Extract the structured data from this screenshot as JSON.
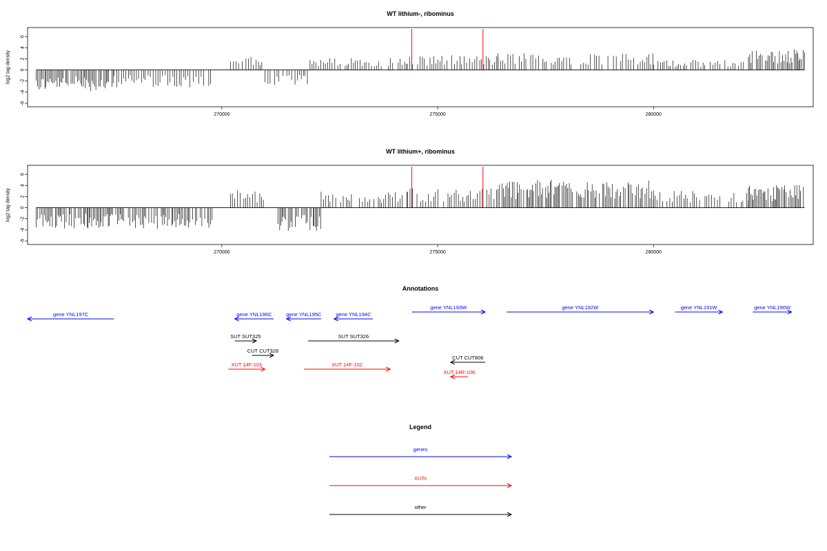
{
  "chart_data": [
    {
      "type": "bar",
      "title": "WT lithium-, ribominus",
      "ylabel": "log2 tag density",
      "xlabel": "",
      "xlim": [
        265500,
        283700
      ],
      "ylim": [
        -6,
        7
      ],
      "x_ticks": [
        "270000",
        "275000",
        "280000"
      ],
      "y_ticks": [
        "-6",
        "-4",
        "-2",
        "0",
        "2",
        "4",
        "6"
      ],
      "marker_positions": [
        274400,
        276050
      ],
      "values_note": "dense per-position signal; bars generated from regional approximate levels",
      "regions": [
        {
          "from": 265700,
          "to": 267500,
          "level": -3.2
        },
        {
          "from": 267500,
          "to": 268800,
          "level": -2.6
        },
        {
          "from": 268800,
          "to": 269800,
          "level": -2.8
        },
        {
          "from": 270200,
          "to": 271000,
          "level": 2.0
        },
        {
          "from": 271000,
          "to": 272000,
          "level": -2.5
        },
        {
          "from": 272000,
          "to": 274300,
          "level": 1.8
        },
        {
          "from": 274300,
          "to": 276400,
          "level": 2.2
        },
        {
          "from": 276400,
          "to": 280000,
          "level": 2.6
        },
        {
          "from": 280000,
          "to": 282200,
          "level": 1.5
        },
        {
          "from": 282200,
          "to": 283500,
          "level": 3.2
        }
      ]
    },
    {
      "type": "bar",
      "title": "WT lithium+, ribominus",
      "ylabel": "log2 tag density",
      "xlabel": "",
      "xlim": [
        265500,
        283700
      ],
      "ylim": [
        -6,
        7
      ],
      "x_ticks": [
        "270000",
        "275000",
        "280000"
      ],
      "y_ticks": [
        "-6",
        "-4",
        "-2",
        "0",
        "2",
        "4",
        "6"
      ],
      "marker_positions": [
        274400,
        276050
      ],
      "values_note": "dense per-position signal; bars generated from regional approximate levels",
      "regions": [
        {
          "from": 265700,
          "to": 269800,
          "level": -3.2
        },
        {
          "from": 270200,
          "to": 271000,
          "level": 2.8
        },
        {
          "from": 271300,
          "to": 272300,
          "level": -3.5
        },
        {
          "from": 272300,
          "to": 274300,
          "level": 2.4
        },
        {
          "from": 274300,
          "to": 276400,
          "level": 3.0
        },
        {
          "from": 276400,
          "to": 280000,
          "level": 4.2
        },
        {
          "from": 280000,
          "to": 282200,
          "level": 2.6
        },
        {
          "from": 282200,
          "to": 283500,
          "level": 3.4
        }
      ]
    }
  ],
  "annotations": {
    "title": "Annotations",
    "items": [
      {
        "label": "gene YNL197C",
        "color": "#0000ff",
        "x1": 265500,
        "x2": 267500,
        "dir": "left",
        "row": 0
      },
      {
        "label": "gene YNL196C",
        "color": "#0000ff",
        "x1": 270300,
        "x2": 271200,
        "dir": "left",
        "row": 0
      },
      {
        "label": "gene YNL195C",
        "color": "#0000ff",
        "x1": 271500,
        "x2": 272300,
        "dir": "left",
        "row": 0
      },
      {
        "label": "gene YNL194C",
        "color": "#0000ff",
        "x1": 272600,
        "x2": 273500,
        "dir": "left",
        "row": 0
      },
      {
        "label": "gene YNL193W",
        "color": "#0000ff",
        "x1": 274400,
        "x2": 276100,
        "dir": "right",
        "row": -1
      },
      {
        "label": "gene YNL192W",
        "color": "#0000ff",
        "x1": 276600,
        "x2": 280000,
        "dir": "right",
        "row": -1
      },
      {
        "label": "gene YNL191W",
        "color": "#0000ff",
        "x1": 280500,
        "x2": 281600,
        "dir": "right",
        "row": -1
      },
      {
        "label": "gene YNL190W",
        "color": "#0000ff",
        "x1": 282300,
        "x2": 283200,
        "dir": "right",
        "row": -1
      },
      {
        "label": "SUT SUT325",
        "color": "#000000",
        "x1": 270300,
        "x2": 270800,
        "dir": "right",
        "row": 1
      },
      {
        "label": "SUT SUT326",
        "color": "#000000",
        "x1": 272000,
        "x2": 274100,
        "dir": "right",
        "row": 1
      },
      {
        "label": "CUT CUT328",
        "color": "#000000",
        "x1": 270700,
        "x2": 271200,
        "dir": "right",
        "row": 2
      },
      {
        "label": "CUT CUT806",
        "color": "#000000",
        "x1": 275300,
        "x2": 276100,
        "dir": "left",
        "row": 3
      },
      {
        "label": "XUT 14F-101",
        "color": "#ff0000",
        "x1": 270150,
        "x2": 271000,
        "dir": "right",
        "row": 4
      },
      {
        "label": "XUT 14F-102",
        "color": "#ff0000",
        "x1": 271900,
        "x2": 273900,
        "dir": "right",
        "row": 4
      },
      {
        "label": "XUT 14R-106",
        "color": "#ff0000",
        "x1": 275300,
        "x2": 275700,
        "dir": "left",
        "row": 5
      }
    ]
  },
  "legend": {
    "title": "Legend",
    "items": [
      {
        "label": "genes",
        "color": "#0000ff"
      },
      {
        "label": "XUTs",
        "color": "#ff0000"
      },
      {
        "label": "other",
        "color": "#000000"
      }
    ]
  }
}
